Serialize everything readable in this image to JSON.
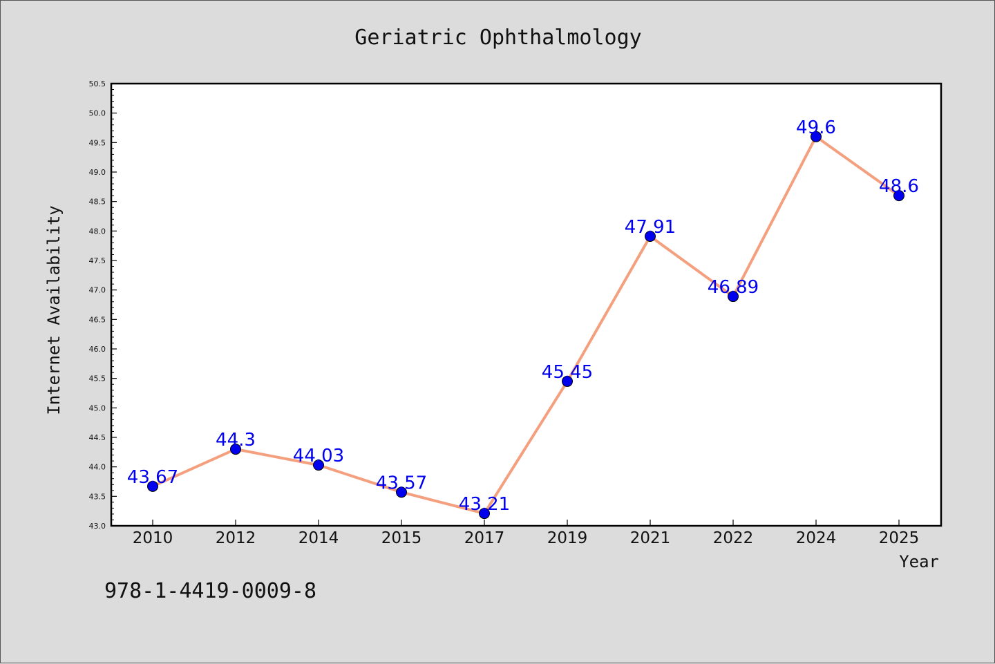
{
  "chart_data": {
    "type": "line",
    "title": "Geriatric Ophthalmology",
    "xlabel": "Year",
    "ylabel": "Internet Availability",
    "categories": [
      "2010",
      "2012",
      "2014",
      "2015",
      "2017",
      "2019",
      "2021",
      "2022",
      "2024",
      "2025"
    ],
    "series": [
      {
        "values": [
          43.67,
          44.3,
          44.03,
          43.57,
          43.21,
          45.45,
          47.91,
          46.89,
          49.6,
          48.6
        ],
        "data_labels": [
          "43.67",
          "44.3",
          "44.03",
          "43.57",
          "43.21",
          "45.45",
          "47.91",
          "46.89",
          "49.6",
          "48.6"
        ],
        "line_color": "#f4a07f",
        "marker_color": "#0000ee",
        "label_color": "#0000ee"
      }
    ],
    "ylim": [
      43.0,
      50.5
    ],
    "yticks": [
      "43.0",
      "43.5",
      "44.0",
      "44.5",
      "45.0",
      "45.5",
      "46.0",
      "46.5",
      "47.0",
      "47.5",
      "48.0",
      "48.5",
      "49.0",
      "49.5",
      "50.0",
      "50.5"
    ],
    "grid": false,
    "legend": "none"
  },
  "footnote": "978-1-4419-0009-8"
}
